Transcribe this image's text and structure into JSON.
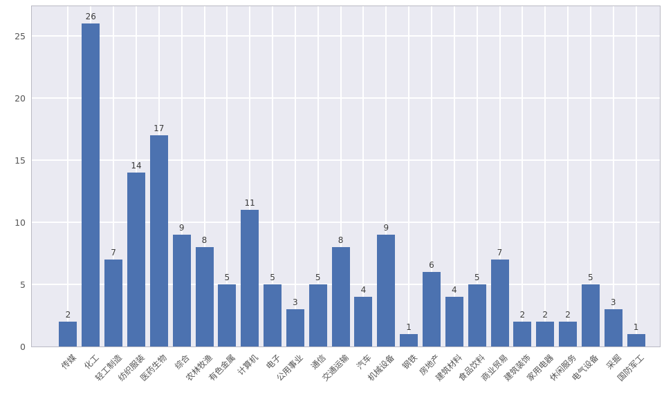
{
  "chart_data": {
    "type": "bar",
    "title": "",
    "xlabel": "",
    "ylabel": "",
    "categories": [
      "传媒",
      "化工",
      "轻工制造",
      "纺织服装",
      "医药生物",
      "综合",
      "农林牧渔",
      "有色金属",
      "计算机",
      "电子",
      "公用事业",
      "通信",
      "交通运输",
      "汽车",
      "机械设备",
      "钢铁",
      "房地产",
      "建筑材料",
      "食品饮料",
      "商业贸易",
      "建筑装饰",
      "家用电器",
      "休闲服务",
      "电气设备",
      "采掘",
      "国防军工"
    ],
    "values": [
      2,
      26,
      7,
      14,
      17,
      9,
      8,
      5,
      11,
      5,
      3,
      5,
      8,
      4,
      9,
      1,
      6,
      4,
      5,
      7,
      2,
      2,
      2,
      5,
      3,
      1
    ],
    "bar_value_labels": [
      "2",
      "26",
      "7",
      "14",
      "17",
      "9",
      "8",
      "5",
      "11",
      "5",
      "3",
      "5",
      "8",
      "4",
      "9",
      "1",
      "6",
      "4",
      "5",
      "7",
      "2",
      "2",
      "2",
      "5",
      "3",
      "1"
    ],
    "yticks": [
      0,
      5,
      10,
      15,
      20,
      25
    ],
    "ylim": [
      0,
      27.5
    ],
    "grid": true,
    "legend": null,
    "x_tick_rotation_deg": 45,
    "colors": {
      "bar": "#4c72b0",
      "plot_background": "#eaeaf2",
      "gridline": "#ffffff",
      "spine": "#b9b9c3",
      "tick_text": "#555555",
      "value_text": "#3a3a3a"
    }
  }
}
